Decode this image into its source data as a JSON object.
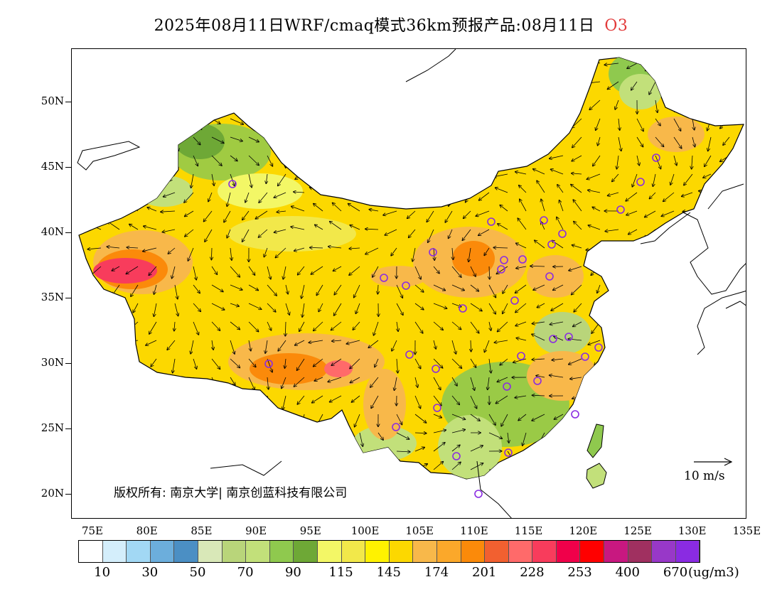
{
  "header": {
    "title": "2025年08月11日WRF/cmaq模式36km预报产品:08月11日",
    "pollutant": "O3",
    "pollutant_color": "#e23a3a"
  },
  "map": {
    "lat_labels": [
      "50N",
      "45N",
      "40N",
      "35N",
      "30N",
      "25N",
      "20N"
    ],
    "lon_labels": [
      "75E",
      "80E",
      "85E",
      "90E",
      "95E",
      "100E",
      "105E",
      "110E",
      "115E",
      "120E",
      "125E",
      "130E",
      "135E"
    ],
    "copyright": "版权所有: 南京大学| 南京创蓝科技有限公司",
    "wind_reference": "10 m/s"
  },
  "legend": {
    "colors": [
      "#ffffff",
      "#d4eefb",
      "#a2d8f4",
      "#6caedc",
      "#4b8fc4",
      "#d9e8b8",
      "#b9d57a",
      "#c2e07a",
      "#8fc94e",
      "#6ea836",
      "#f3f766",
      "#f2e84a",
      "#fff200",
      "#fcd800",
      "#f8b84a",
      "#fba82a",
      "#fb8a0a",
      "#f26030",
      "#ff6a6a",
      "#f83c5c",
      "#f0004a",
      "#ff0000",
      "#c81880",
      "#a03060",
      "#9838c8",
      "#8a2be2"
    ],
    "labels": [
      "10",
      "30",
      "50",
      "70",
      "90",
      "115",
      "145",
      "174",
      "201",
      "228",
      "253",
      "400",
      "670"
    ],
    "units": "(ug/m3)"
  }
}
